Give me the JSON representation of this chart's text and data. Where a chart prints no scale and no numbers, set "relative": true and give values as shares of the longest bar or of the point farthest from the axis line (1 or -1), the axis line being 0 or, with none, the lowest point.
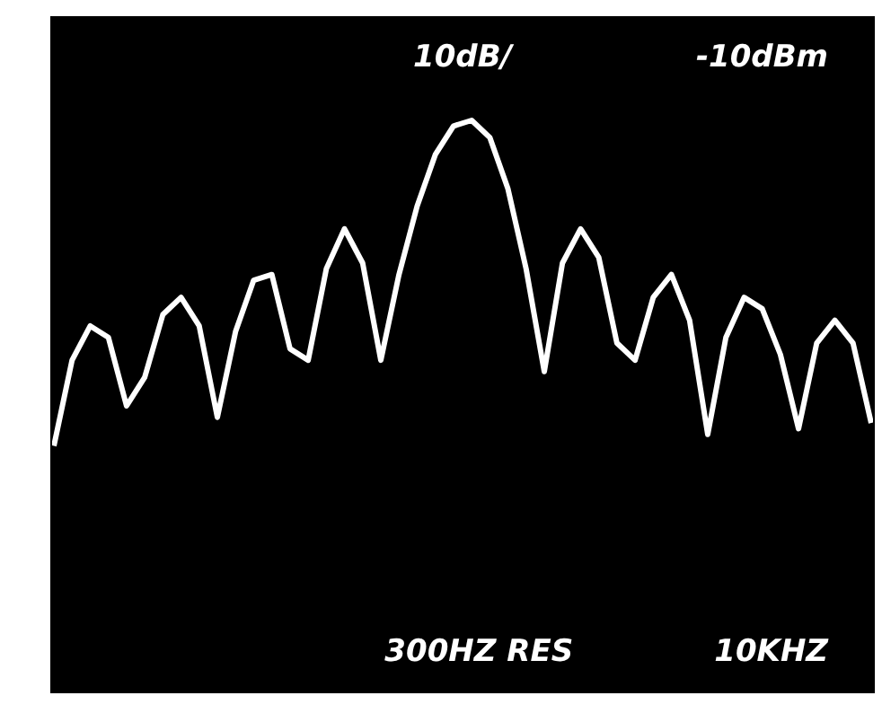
{
  "chart_data": {
    "type": "line",
    "relative": true,
    "annotations": [
      "10dB/",
      "-10dBm",
      "300HZ RES",
      "10KHZ"
    ],
    "categories": [
      null,
      null,
      null,
      null,
      null,
      null,
      null,
      null,
      null,
      null,
      null,
      null,
      null,
      null,
      null,
      null,
      null,
      null,
      null,
      null,
      null,
      null,
      null,
      null,
      null,
      null,
      null,
      null,
      null,
      null,
      null,
      null,
      null,
      null,
      null,
      null,
      null,
      null,
      null,
      null,
      null,
      null,
      null,
      null,
      null,
      null
    ],
    "series": [
      {
        "color": "#ffffff",
        "values": [
          0.43,
          0.58,
          0.64,
          0.62,
          0.5,
          0.55,
          0.66,
          0.69,
          0.64,
          0.48,
          0.63,
          0.72,
          0.73,
          0.6,
          0.58,
          0.74,
          0.81,
          0.75,
          0.58,
          0.73,
          0.85,
          0.94,
          0.99,
          1,
          0.97,
          0.88,
          0.74,
          0.56,
          0.75,
          0.81,
          0.76,
          0.61,
          0.58,
          0.69,
          0.73,
          0.65,
          0.45,
          0.62,
          0.69,
          0.67,
          0.59,
          0.46,
          0.61,
          0.65,
          0.61,
          0.47
        ]
      }
    ]
  }
}
